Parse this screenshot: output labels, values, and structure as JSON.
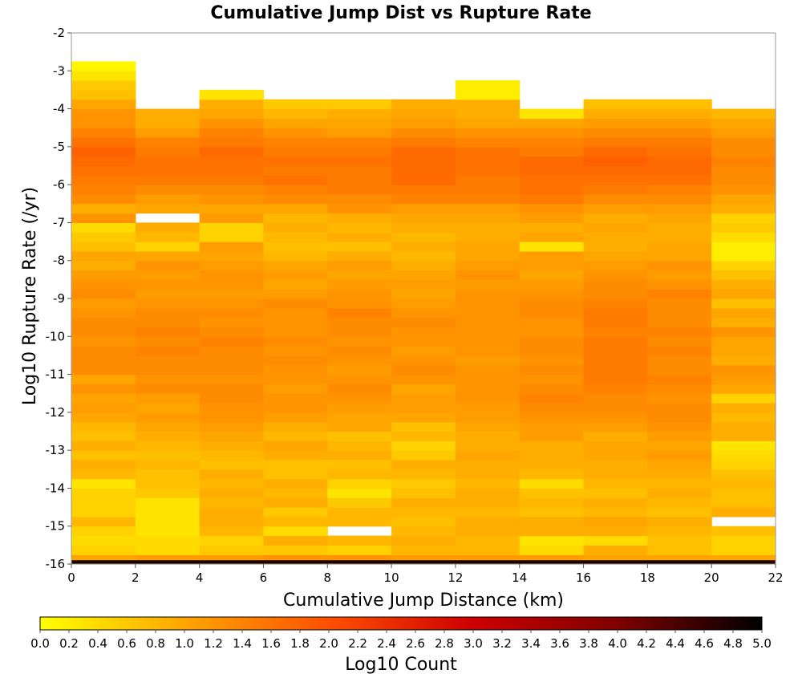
{
  "chart_data": {
    "type": "heatmap",
    "title": "Cumulative Jump Dist vs Rupture Rate",
    "xlabel": "Cumulative Jump Distance (km)",
    "ylabel": "Log10 Rupture Rate (/yr)",
    "colorbar_label": "Log10 Count",
    "xlim": [
      0,
      22
    ],
    "ylim": [
      -16,
      -2
    ],
    "x_ticks": [
      "0",
      "2",
      "4",
      "6",
      "8",
      "10",
      "12",
      "14",
      "16",
      "18",
      "20",
      "22"
    ],
    "y_ticks": [
      "-2",
      "-3",
      "-4",
      "-5",
      "-6",
      "-7",
      "-8",
      "-9",
      "-10",
      "-11",
      "-12",
      "-13",
      "-14",
      "-15",
      "-16"
    ],
    "colorbar_range": [
      0,
      5
    ],
    "colorbar_ticks": [
      "0.0",
      "0.2",
      "0.4",
      "0.6",
      "0.8",
      "1.0",
      "1.2",
      "1.4",
      "1.6",
      "1.8",
      "2.0",
      "2.2",
      "2.4",
      "2.6",
      "2.8",
      "3.0",
      "3.2",
      "3.4",
      "3.6",
      "3.8",
      "4.0",
      "4.2",
      "4.4",
      "4.6",
      "4.8",
      "5.0"
    ],
    "colorscale": [
      "#ffff00",
      "#ffa500",
      "#ff5000",
      "#cc0000",
      "#800000",
      "#000000"
    ],
    "grid": false,
    "x_bin_width": 2,
    "y_bin_height": 0.25,
    "y_bin_lower_edge": -16,
    "x_bins": [
      0,
      2,
      4,
      6,
      8,
      10,
      12,
      14,
      16,
      18,
      20
    ],
    "y_bins": [
      -16,
      -15.75,
      -15.5,
      -15.25,
      -15,
      -14.75,
      -14.5,
      -14.25,
      -14,
      -13.75,
      -13.5,
      -13.25,
      -13,
      -12.75,
      -12.5,
      -12.25,
      -12,
      -11.75,
      -11.5,
      -11.25,
      -11,
      -10.75,
      -10.5,
      -10.25,
      -10,
      -9.75,
      -9.5,
      -9.25,
      -9,
      -8.75,
      -8.5,
      -8.25,
      -8,
      -7.75,
      -7.5,
      -7.25,
      -7,
      -6.75,
      -6.5,
      -6.25,
      -6,
      -5.75,
      -5.5,
      -5.25,
      -5,
      -4.75,
      -4.5,
      -4.25,
      -4,
      -3.75,
      -3.5,
      -3.25,
      -3
    ],
    "values": [
      [
        1.0,
        0.5,
        0.4,
        0.5,
        0.8,
        0.5,
        0.5,
        0.5,
        0.3,
        0.8,
        0.9,
        0.7,
        0.9,
        0.7,
        0.8,
        1.0,
        1.1,
        1.0,
        1.2,
        1.0,
        1.3,
        1.3,
        1.3,
        1.2,
        1.3,
        1.3,
        1.2,
        1.1,
        1.3,
        1.2,
        1.1,
        0.9,
        1.0,
        0.7,
        0.6,
        0.4,
        1.2,
        0.9,
        1.3,
        1.4,
        1.5,
        1.6,
        1.7,
        1.8,
        1.6,
        1.4,
        1.2,
        1.2,
        1.0,
        0.7,
        0.6,
        0.3,
        0.1
      ],
      [
        1.1,
        0.4,
        0.4,
        0.3,
        0.3,
        0.3,
        0.3,
        0.6,
        0.7,
        0.7,
        0.8,
        0.7,
        0.8,
        0.9,
        1.0,
        1.1,
        1.0,
        1.1,
        1.3,
        1.2,
        1.3,
        1.3,
        1.4,
        1.3,
        1.4,
        1.3,
        1.3,
        1.2,
        1.1,
        1.2,
        1.1,
        1.2,
        1.0,
        0.5,
        0.8,
        0.9,
        null,
        1.0,
        1.1,
        1.3,
        1.5,
        1.6,
        1.6,
        1.5,
        1.4,
        1.1,
        0.9,
        0.9,
        null,
        null,
        null,
        null,
        null
      ],
      [
        1.1,
        0.6,
        0.5,
        0.8,
        0.9,
        0.9,
        0.8,
        0.9,
        0.8,
        0.9,
        0.7,
        0.8,
        0.9,
        1.0,
        1.1,
        1.2,
        1.2,
        1.3,
        1.3,
        1.2,
        1.3,
        1.3,
        1.3,
        1.4,
        1.3,
        1.2,
        1.3,
        1.2,
        1.1,
        1.2,
        1.2,
        1.1,
        1.0,
        1.1,
        0.5,
        0.5,
        1.1,
        1.0,
        1.2,
        1.3,
        1.5,
        1.6,
        1.6,
        1.7,
        1.5,
        1.4,
        1.2,
        1.0,
        0.9,
        0.3,
        null,
        null,
        null
      ],
      [
        1.2,
        0.6,
        0.9,
        0.4,
        0.8,
        0.6,
        0.9,
        0.8,
        0.9,
        0.7,
        0.7,
        0.9,
        1.0,
        0.8,
        0.9,
        1.1,
        1.2,
        1.2,
        1.1,
        1.2,
        1.2,
        1.3,
        1.2,
        1.3,
        1.2,
        1.2,
        1.2,
        1.3,
        1.1,
        1.0,
        1.1,
        1.0,
        0.8,
        0.7,
        0.8,
        0.9,
        0.8,
        1.0,
        1.3,
        1.4,
        1.6,
        1.5,
        1.6,
        1.5,
        1.4,
        1.2,
        1.0,
        0.8,
        0.6,
        null,
        null,
        null,
        null
      ],
      [
        1.2,
        0.5,
        0.8,
        null,
        0.8,
        0.8,
        0.6,
        0.3,
        0.5,
        0.8,
        0.7,
        0.9,
        0.8,
        0.7,
        1.0,
        1.0,
        1.1,
        1.2,
        1.3,
        1.2,
        1.1,
        1.2,
        1.3,
        1.2,
        1.3,
        1.3,
        1.4,
        1.2,
        1.2,
        1.1,
        1.0,
        1.1,
        0.9,
        0.7,
        0.9,
        0.8,
        0.9,
        1.2,
        1.3,
        1.5,
        1.5,
        1.5,
        1.6,
        1.5,
        1.4,
        1.1,
        1.0,
        0.9,
        0.6,
        null,
        null,
        null,
        null
      ],
      [
        1.1,
        0.8,
        0.9,
        0.8,
        0.7,
        0.8,
        0.9,
        0.7,
        0.6,
        0.8,
        0.9,
        0.6,
        0.5,
        0.8,
        0.7,
        1.0,
        1.1,
        1.1,
        1.0,
        1.2,
        1.3,
        1.2,
        1.1,
        1.2,
        1.2,
        1.3,
        1.2,
        1.1,
        1.0,
        1.1,
        1.0,
        0.9,
        0.8,
        0.9,
        0.8,
        0.9,
        1.0,
        1.1,
        1.4,
        1.5,
        1.7,
        1.7,
        1.7,
        1.7,
        1.5,
        1.3,
        1.1,
        1.0,
        0.9,
        null,
        null,
        null,
        null
      ],
      [
        1.1,
        0.8,
        0.8,
        0.9,
        0.9,
        0.8,
        0.9,
        0.9,
        0.8,
        0.9,
        0.9,
        1.0,
        0.9,
        0.9,
        1.0,
        1.1,
        1.1,
        1.2,
        1.2,
        1.2,
        1.2,
        1.1,
        1.2,
        1.2,
        1.2,
        1.2,
        1.2,
        1.2,
        1.2,
        1.1,
        1.2,
        1.1,
        1.0,
        1.0,
        0.9,
        0.9,
        1.0,
        1.1,
        1.4,
        1.5,
        1.5,
        1.6,
        1.6,
        1.6,
        1.4,
        1.2,
        1.0,
        0.9,
        0.9,
        0.2,
        0.2,
        null,
        null
      ],
      [
        1.1,
        0.4,
        0.3,
        0.9,
        0.9,
        0.7,
        0.8,
        0.7,
        0.4,
        0.8,
        0.9,
        0.9,
        0.9,
        1.1,
        1.1,
        1.2,
        1.3,
        1.4,
        1.3,
        1.2,
        1.3,
        1.2,
        1.3,
        1.3,
        1.2,
        1.2,
        1.3,
        1.3,
        1.2,
        1.1,
        1.0,
        1.1,
        1.1,
        0.3,
        1.0,
        0.9,
        1.1,
        1.2,
        1.5,
        1.6,
        1.6,
        1.7,
        1.7,
        1.5,
        1.4,
        1.2,
        1.0,
        0.3,
        null,
        null,
        null,
        null,
        null
      ],
      [
        1.0,
        0.9,
        0.4,
        0.9,
        1.0,
        0.8,
        0.9,
        0.7,
        0.8,
        0.9,
        0.9,
        1.0,
        1.0,
        0.9,
        1.1,
        1.2,
        1.3,
        1.3,
        1.4,
        1.5,
        1.5,
        1.5,
        1.5,
        1.5,
        1.4,
        1.5,
        1.5,
        1.4,
        1.3,
        1.3,
        1.2,
        1.1,
        1.0,
        0.9,
        0.9,
        1.0,
        0.9,
        1.1,
        1.3,
        1.5,
        1.6,
        1.7,
        1.8,
        1.7,
        1.5,
        1.3,
        1.1,
        0.9,
        0.7,
        null,
        null,
        null,
        null
      ],
      [
        1.0,
        0.7,
        0.7,
        0.8,
        0.9,
        0.7,
        0.8,
        0.9,
        0.8,
        0.9,
        1.0,
        1.1,
        1.0,
        1.1,
        1.2,
        1.3,
        1.3,
        1.2,
        1.3,
        1.4,
        1.3,
        1.3,
        1.4,
        1.3,
        1.4,
        1.3,
        1.3,
        1.3,
        1.4,
        1.2,
        1.1,
        1.2,
        1.0,
        1.0,
        0.9,
        0.9,
        1.0,
        1.1,
        1.3,
        1.4,
        1.6,
        1.7,
        1.7,
        1.6,
        1.5,
        1.3,
        1.1,
        0.9,
        0.7,
        null,
        null,
        null,
        null
      ],
      [
        1.0,
        0.5,
        0.5,
        0.7,
        null,
        0.9,
        0.7,
        0.7,
        0.8,
        0.7,
        0.5,
        0.4,
        0.3,
        0.9,
        0.9,
        0.8,
        0.9,
        0.5,
        1.0,
        1.1,
        1.2,
        0.9,
        1.0,
        1.0,
        1.2,
        0.9,
        1.0,
        0.7,
        1.0,
        0.9,
        0.7,
        0.5,
        0.2,
        0.2,
        0.4,
        0.6,
        0.5,
        0.9,
        1.0,
        1.2,
        1.3,
        1.3,
        1.4,
        1.3,
        1.3,
        1.1,
        1.0,
        0.8,
        null,
        null,
        null,
        null,
        null
      ]
    ]
  }
}
